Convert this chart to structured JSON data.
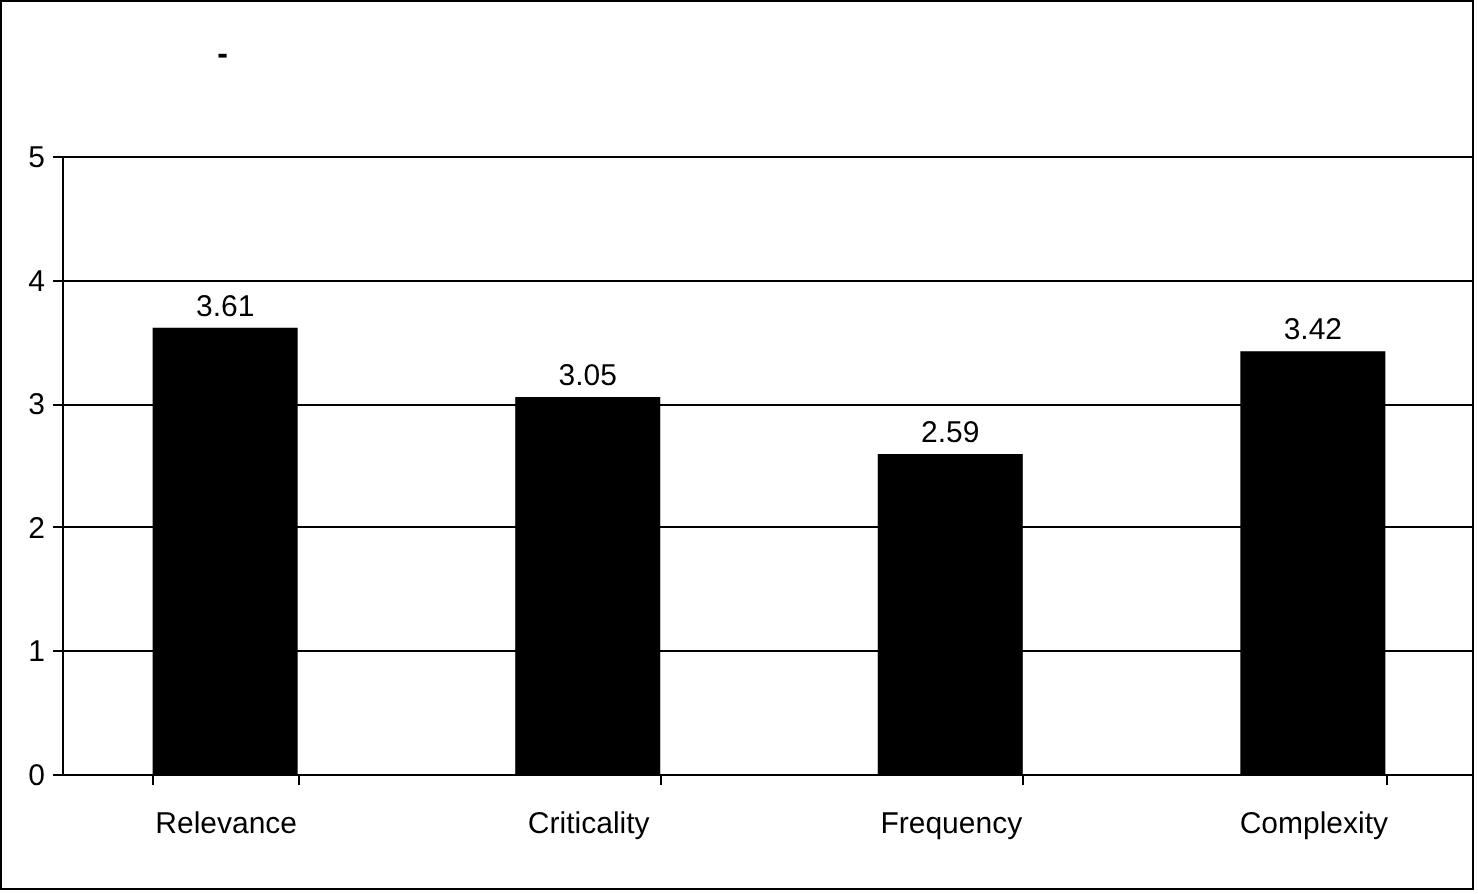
{
  "chart_data": {
    "type": "bar",
    "title": "-",
    "categories": [
      "Relevance",
      "Criticality",
      "Frequency",
      "Complexity"
    ],
    "values": [
      3.61,
      3.05,
      2.59,
      3.42
    ],
    "color": "#000000",
    "ylim": [
      0,
      5
    ],
    "yticks": [
      0,
      1,
      2,
      3,
      4,
      5
    ],
    "grid": "y",
    "data_labels": true
  }
}
